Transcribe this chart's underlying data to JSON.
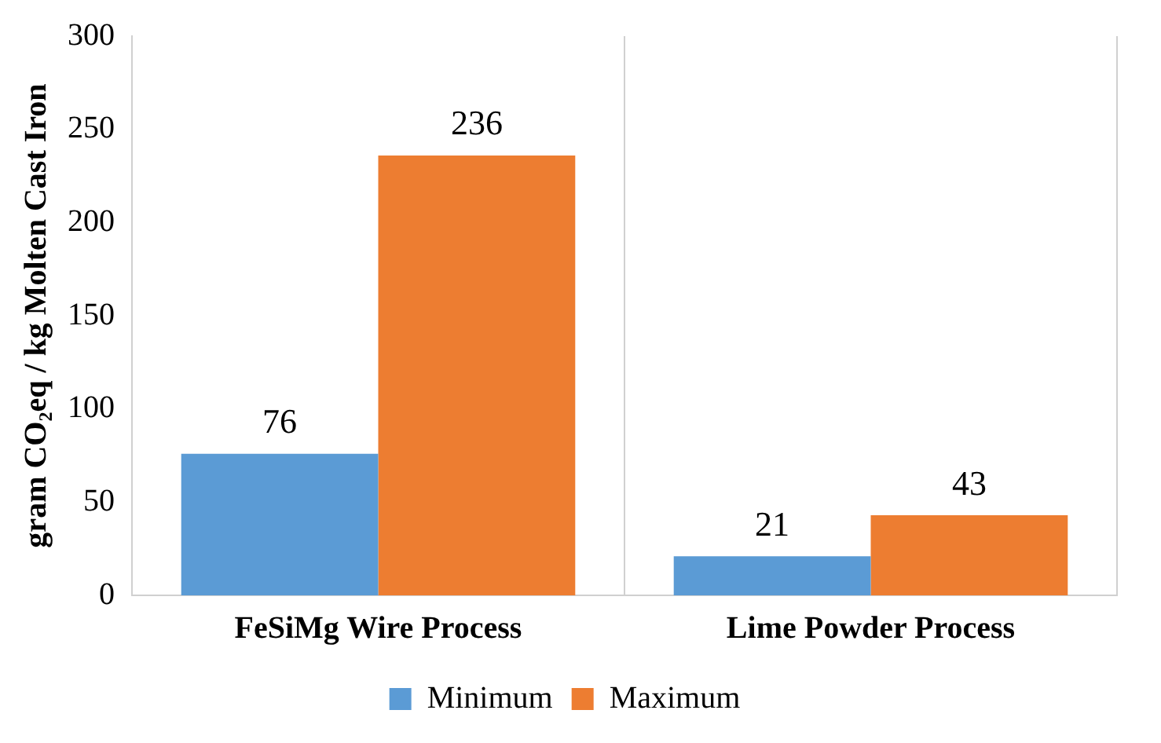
{
  "chart_data": {
    "type": "bar",
    "ylabel": "gram CO₂eq / kg Molten Cast Iron",
    "categories": [
      "FeSiMg Wire Process",
      "Lime Powder Process"
    ],
    "series": [
      {
        "name": "Minimum",
        "color": "#5b9bd5",
        "values": [
          76,
          21
        ]
      },
      {
        "name": "Maximum",
        "color": "#ed7d31",
        "values": [
          236,
          43
        ]
      }
    ],
    "ylim": [
      0,
      300
    ],
    "yticks": [
      0,
      50,
      100,
      150,
      200,
      250,
      300
    ],
    "grid": "x",
    "legend": "bottom",
    "data_labels": true
  }
}
